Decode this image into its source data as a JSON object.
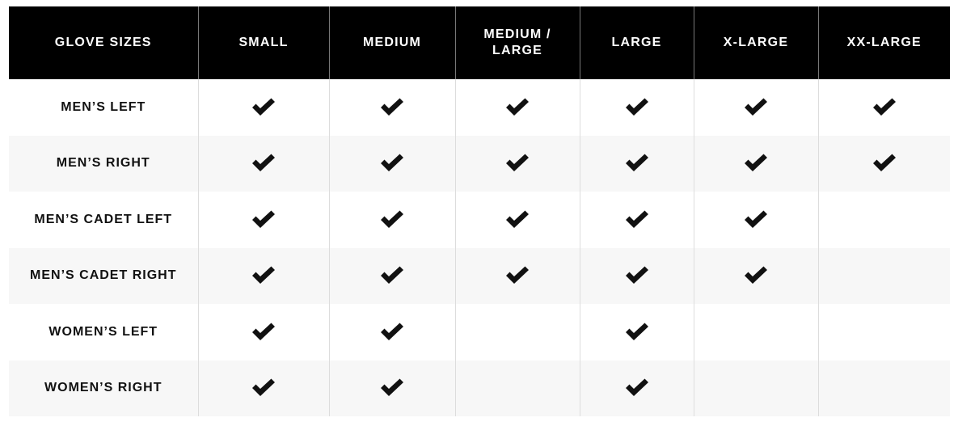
{
  "table": {
    "headers": [
      "GLOVE SIZES",
      "SMALL",
      "MEDIUM",
      "MEDIUM / LARGE",
      "LARGE",
      "X-LARGE",
      "XX-LARGE"
    ],
    "rows": [
      {
        "label": "MEN’S LEFT",
        "available": [
          true,
          true,
          true,
          true,
          true,
          true
        ]
      },
      {
        "label": "MEN’S RIGHT",
        "available": [
          true,
          true,
          true,
          true,
          true,
          true
        ]
      },
      {
        "label": "MEN’S CADET LEFT",
        "available": [
          true,
          true,
          true,
          true,
          true,
          false
        ]
      },
      {
        "label": "MEN’S CADET RIGHT",
        "available": [
          true,
          true,
          true,
          true,
          true,
          false
        ]
      },
      {
        "label": "WOMEN’S LEFT",
        "available": [
          true,
          true,
          false,
          true,
          false,
          false
        ]
      },
      {
        "label": "WOMEN’S RIGHT",
        "available": [
          true,
          true,
          false,
          true,
          false,
          false
        ]
      }
    ],
    "check_icon": "checkmark-icon"
  }
}
